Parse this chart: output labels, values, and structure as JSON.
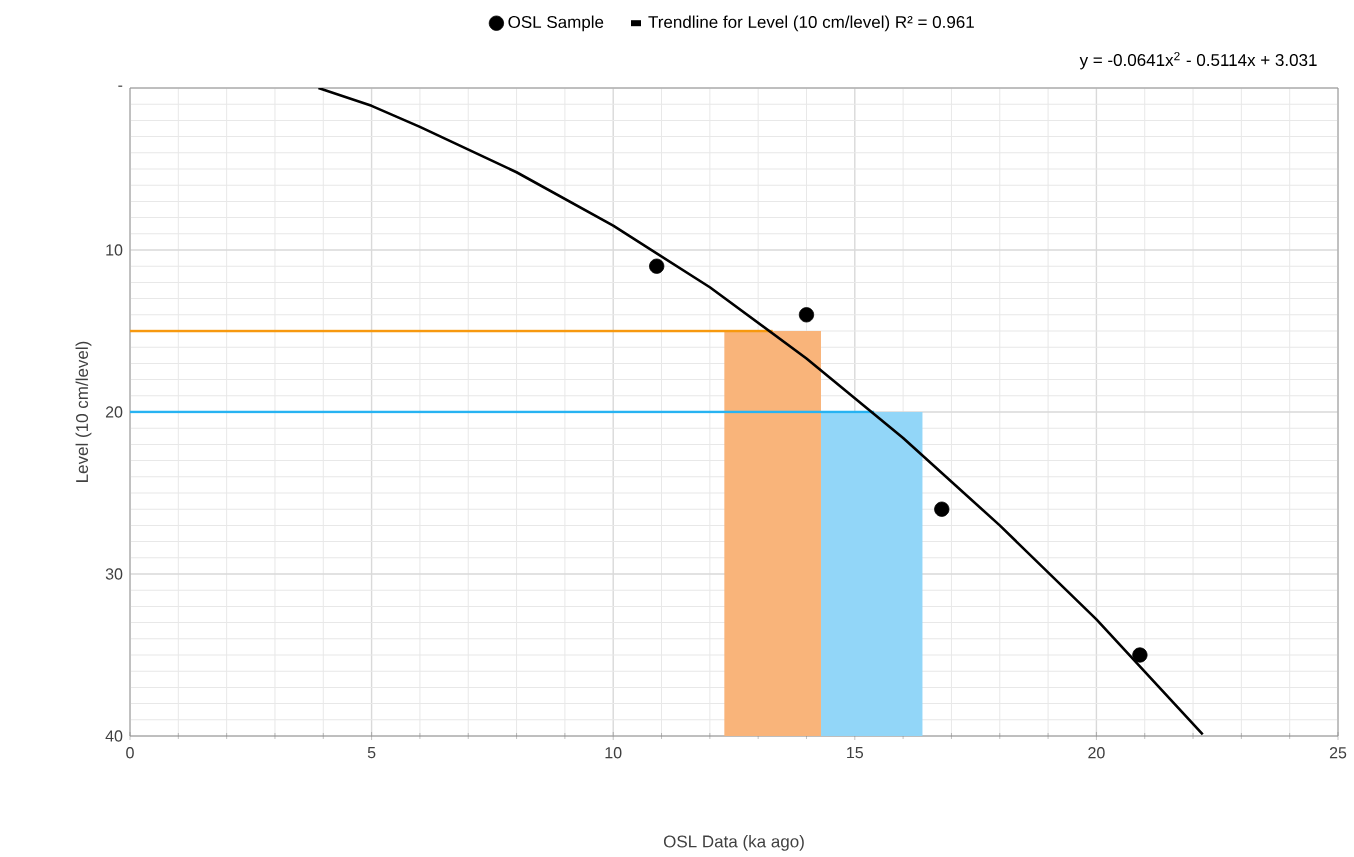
{
  "chart_data": {
    "type": "scatter",
    "xlabel": "OSL Data (ka ago)",
    "ylabel": "Level (10 cm/level)",
    "annotations": [
      "y = -0.0641x$^{2}$ - 0.5114x + 3.031"
    ],
    "xlim": [
      0,
      25
    ],
    "ylim": [
      40,
      0
    ],
    "xticks": [
      0,
      5,
      10,
      15,
      20,
      25
    ],
    "yticks": [
      {
        "value": 0,
        "label": "-"
      },
      10,
      20,
      30,
      40
    ],
    "grid": true,
    "legend": "top",
    "series": [
      {
        "type": "area",
        "color": "#f9b47a",
        "x": [
          12.3,
          12.3,
          14.3,
          14.3
        ],
        "values": [
          40,
          15,
          15,
          40
        ]
      },
      {
        "type": "area",
        "color": "#92d6f8",
        "x": [
          14.3,
          14.3,
          16.4,
          16.4
        ],
        "values": [
          40,
          20,
          20,
          40
        ]
      },
      {
        "type": "line",
        "color": "#f7990f",
        "marker": "none",
        "x": [
          0,
          13.3
        ],
        "values": [
          15,
          15
        ]
      },
      {
        "type": "line",
        "color": "#27b3f2",
        "marker": "none",
        "x": [
          0,
          15.4
        ],
        "values": [
          20,
          20
        ]
      },
      {
        "marker": "circle",
        "name": "OSL Sample",
        "color": "#000000",
        "x": [
          10.9,
          14.0,
          16.8,
          20.9
        ],
        "values": [
          11,
          14,
          26,
          35
        ]
      },
      {
        "type": "line",
        "name": "Trendline for Level (10 cm/level) R² = 0.961",
        "color": "#000000",
        "marker": "none",
        "x": [
          3.9,
          5,
          6,
          8,
          10,
          12,
          14,
          16,
          18,
          20,
          22.2
        ],
        "values": [
          0,
          1.1,
          2.4,
          5.2,
          8.5,
          12.3,
          16.7,
          21.6,
          27.0,
          32.8,
          39.9
        ]
      }
    ]
  }
}
